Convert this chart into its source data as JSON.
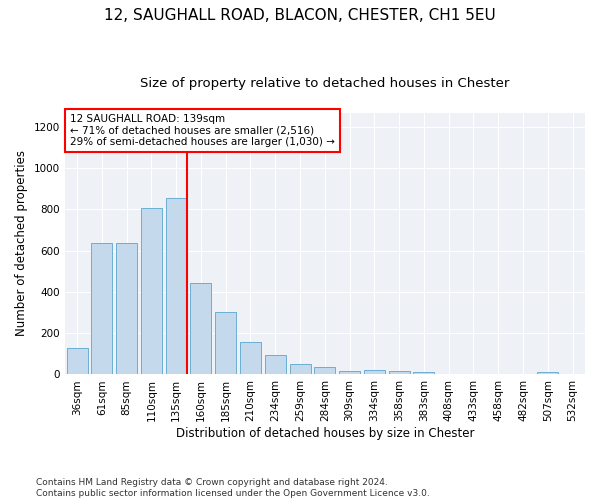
{
  "title1": "12, SAUGHALL ROAD, BLACON, CHESTER, CH1 5EU",
  "title2": "Size of property relative to detached houses in Chester",
  "xlabel": "Distribution of detached houses by size in Chester",
  "ylabel": "Number of detached properties",
  "footnote": "Contains HM Land Registry data © Crown copyright and database right 2024.\nContains public sector information licensed under the Open Government Licence v3.0.",
  "bar_labels": [
    "36sqm",
    "61sqm",
    "85sqm",
    "110sqm",
    "135sqm",
    "160sqm",
    "185sqm",
    "210sqm",
    "234sqm",
    "259sqm",
    "284sqm",
    "309sqm",
    "334sqm",
    "358sqm",
    "383sqm",
    "408sqm",
    "433sqm",
    "458sqm",
    "482sqm",
    "507sqm",
    "532sqm"
  ],
  "bar_values": [
    130,
    635,
    635,
    805,
    855,
    445,
    305,
    155,
    95,
    50,
    38,
    15,
    20,
    18,
    10,
    0,
    0,
    0,
    0,
    10,
    0
  ],
  "bar_color": "#c5d9ed",
  "bar_edge_color": "#6baed6",
  "annotation_box_text": "12 SAUGHALL ROAD: 139sqm\n← 71% of detached houses are smaller (2,516)\n29% of semi-detached houses are larger (1,030) →",
  "annotation_box_color": "red",
  "red_line_bar_index": 4,
  "ylim": [
    0,
    1270
  ],
  "yticks": [
    0,
    200,
    400,
    600,
    800,
    1000,
    1200
  ],
  "background_color": "#eef2f7",
  "grid_color": "white",
  "title1_fontsize": 11,
  "title2_fontsize": 9.5,
  "axis_label_fontsize": 8.5,
  "tick_fontsize": 7.5,
  "footnote_fontsize": 6.5
}
